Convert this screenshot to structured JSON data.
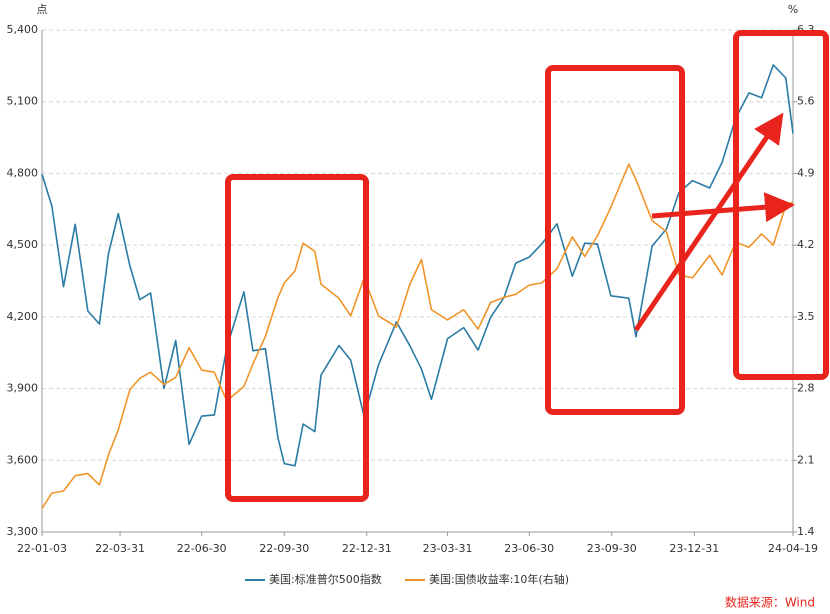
{
  "chart_data": {
    "type": "line",
    "y_label": "点",
    "y2_label": "%",
    "source": "数据来源：Wind",
    "x": [
      "22-01-03",
      "22-01-14",
      "22-01-27",
      "22-02-09",
      "22-02-23",
      "22-03-08",
      "22-03-18",
      "22-03-29",
      "22-04-11",
      "22-04-22",
      "22-05-04",
      "22-05-19",
      "22-06-01",
      "22-06-16",
      "22-06-30",
      "22-07-14",
      "22-07-28",
      "22-08-16",
      "22-08-26",
      "22-09-09",
      "22-09-23",
      "22-09-30",
      "22-10-12",
      "22-10-21",
      "22-11-03",
      "22-11-10",
      "22-11-30",
      "22-12-13",
      "22-12-28",
      "23-01-13",
      "23-02-02",
      "23-02-17",
      "23-03-02",
      "23-03-13",
      "23-03-31",
      "23-04-18",
      "23-05-04",
      "23-05-18",
      "23-06-02",
      "23-06-15",
      "23-06-30",
      "23-07-14",
      "23-07-31",
      "23-08-17",
      "23-08-31",
      "23-09-14",
      "23-09-29",
      "23-10-19",
      "23-10-27",
      "23-11-14",
      "23-11-30",
      "23-12-14",
      "23-12-29",
      "24-01-17",
      "24-01-31",
      "24-02-15",
      "24-03-01",
      "24-03-15",
      "24-03-28",
      "24-04-11",
      "24-04-19"
    ],
    "series": [
      {
        "name": "美国:标准普尔500指数",
        "color": "#2b7ba5",
        "values": [
          4797,
          4663,
          4326,
          4587,
          4225,
          4170,
          4463,
          4632,
          4413,
          4272,
          4300,
          3901,
          4101,
          3667,
          3785,
          3790,
          4072,
          4305,
          4058,
          4067,
          3693,
          3586,
          3577,
          3752,
          3720,
          3956,
          4080,
          4019,
          3783,
          3999,
          4179,
          4079,
          3981,
          3855,
          4109,
          4155,
          4061,
          4198,
          4282,
          4425,
          4450,
          4505,
          4589,
          4370,
          4508,
          4505,
          4288,
          4278,
          4117,
          4496,
          4568,
          4720,
          4770,
          4739,
          4846,
          5030,
          5137,
          5117,
          5254,
          5199,
          4967
        ]
      },
      {
        "name": "美国:国债收益率:10年(右轴)",
        "color": "#f0952a",
        "axis": "y2",
        "values": [
          1.63,
          1.78,
          1.8,
          1.95,
          1.97,
          1.86,
          2.15,
          2.4,
          2.79,
          2.9,
          2.96,
          2.84,
          2.91,
          3.2,
          2.98,
          2.96,
          2.68,
          2.82,
          3.04,
          3.31,
          3.69,
          3.83,
          3.95,
          4.22,
          4.14,
          3.82,
          3.68,
          3.51,
          3.88,
          3.51,
          3.4,
          3.82,
          4.06,
          3.57,
          3.47,
          3.57,
          3.38,
          3.64,
          3.69,
          3.72,
          3.81,
          3.83,
          3.97,
          4.28,
          4.09,
          4.29,
          4.57,
          4.99,
          4.84,
          4.44,
          4.33,
          3.91,
          3.88,
          4.1,
          3.91,
          4.23,
          4.18,
          4.31,
          4.2,
          4.59,
          4.62
        ]
      }
    ],
    "xlim": [
      "22-01-03",
      "24-04-19"
    ],
    "xticks": [
      "22-01-03",
      "22-03-31",
      "22-06-30",
      "22-09-30",
      "22-12-31",
      "23-03-31",
      "23-06-30",
      "23-09-30",
      "23-12-31",
      "24-04-19"
    ],
    "ylim": [
      3300,
      5400
    ],
    "yticks": [
      {
        "value": 3300,
        "label": "3,300"
      },
      {
        "value": 3600,
        "label": "3,600"
      },
      {
        "value": 3900,
        "label": "3,900"
      },
      {
        "value": 4200,
        "label": "4,200"
      },
      {
        "value": 4500,
        "label": "4,500"
      },
      {
        "value": 4800,
        "label": "4,800"
      },
      {
        "value": 5100,
        "label": "5,100"
      },
      {
        "value": 5400,
        "label": "5,400"
      }
    ],
    "y2lim": [
      1.4,
      6.3
    ],
    "y2ticks": [
      1.4,
      2.1,
      2.8,
      3.5,
      4.2,
      4.9,
      5.6,
      6.3
    ],
    "grid": true
  }
}
